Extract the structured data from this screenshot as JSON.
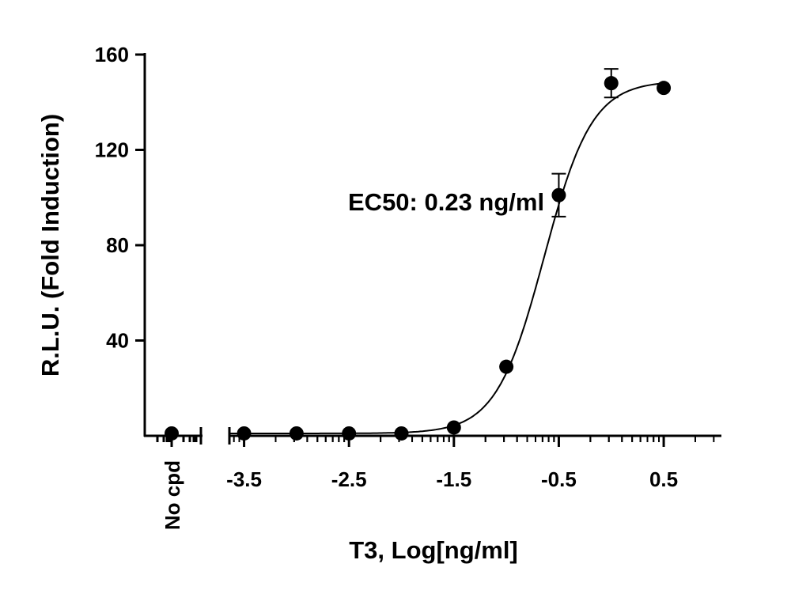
{
  "chart_data": {
    "type": "scatter",
    "annotation": "EC50: 0.23 ng/ml",
    "x_label": "T3, Log[ng/ml]",
    "y_label": "R.L.U. (Fold Induction)",
    "x": [
      -3.5,
      -3,
      -2.5,
      -2,
      -1.5,
      -1,
      -0.5,
      0,
      0.5
    ],
    "values": [
      1,
      1,
      1,
      1,
      3.5,
      29,
      101,
      148,
      146
    ],
    "errors": [
      null,
      null,
      null,
      null,
      null,
      null,
      9,
      6,
      null
    ],
    "no_compound": {
      "label": "No cpd",
      "value": 1
    },
    "fit": {
      "bottom": 1,
      "top": 149,
      "logec50": -0.64,
      "hill": 1.9
    },
    "color": "#000000",
    "xlim": [
      -3.64,
      1.05
    ],
    "xticks": [
      -3.5,
      -2.5,
      -1.5,
      -0.5,
      0.5
    ],
    "ylim": [
      0,
      160
    ],
    "yticks": [
      40,
      80,
      120,
      160
    ]
  }
}
